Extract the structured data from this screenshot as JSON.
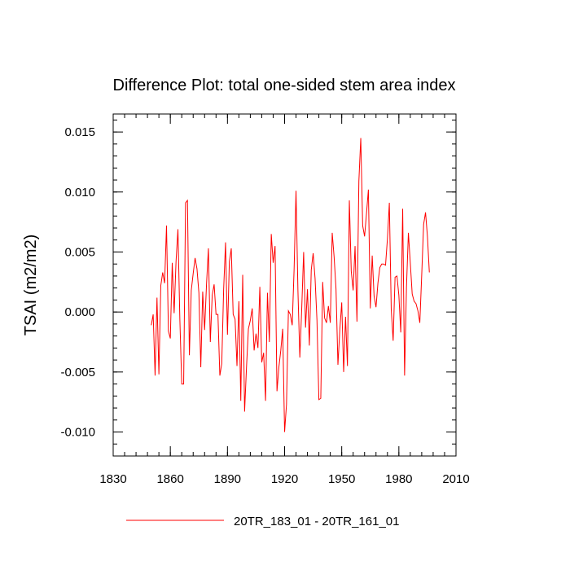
{
  "chart_data": {
    "type": "line",
    "title": "Difference Plot: total one-sided stem area index",
    "xlabel": "",
    "ylabel": "TSAI  (m2/m2)",
    "xlim": [
      1830,
      2010
    ],
    "ylim": [
      -0.012,
      0.0165
    ],
    "xticks": [
      1830,
      1860,
      1890,
      1920,
      1950,
      1980,
      2010
    ],
    "xtick_labels": [
      "1830",
      "1860",
      "1890",
      "1920",
      "1950",
      "1980",
      "2010"
    ],
    "yticks": [
      -0.01,
      -0.005,
      0.0,
      0.005,
      0.01,
      0.015
    ],
    "ytick_labels": [
      "-0.010",
      "-0.005",
      "0.000",
      "0.005",
      "0.010",
      "0.015"
    ],
    "grid": false,
    "legend_position": "bottom",
    "series": [
      {
        "name": "20TR_183_01 - 20TR_161_01",
        "color": "#ff0000",
        "x_start": 1850,
        "x_step": 1,
        "values": [
          -0.0011,
          -0.0002,
          -0.0053,
          0.0012,
          -0.0052,
          0.0022,
          0.0033,
          0.0024,
          0.0072,
          -0.0016,
          -0.0022,
          0.0041,
          -0.0001,
          0.0042,
          0.0069,
          -0.0006,
          -0.006,
          -0.006,
          0.0091,
          0.0093,
          -0.0036,
          0.0018,
          0.0032,
          0.0045,
          0.0036,
          0.0016,
          -0.0046,
          0.0017,
          -0.0015,
          0.0023,
          0.0053,
          -0.0025,
          0.0014,
          0.0023,
          -0.0002,
          -0.0002,
          -0.0053,
          -0.0043,
          0.0019,
          0.0058,
          -0.0019,
          0.0042,
          0.0053,
          -0.0002,
          -0.0006,
          -0.0045,
          0.0009,
          -0.0074,
          0.0031,
          -0.0083,
          -0.0046,
          -0.0014,
          -0.0007,
          0.0003,
          -0.0032,
          -0.0018,
          -0.003,
          0.0021,
          -0.0042,
          -0.0034,
          -0.0074,
          0.0016,
          -0.0025,
          0.0065,
          0.0041,
          0.0055,
          -0.0066,
          -0.0046,
          -0.0032,
          -0.0014,
          -0.01,
          -0.0077,
          0.0001,
          -0.0002,
          -0.0011,
          0.0036,
          0.0101,
          0.0018,
          -0.0038,
          0.0003,
          0.005,
          -0.0013,
          0.0019,
          -0.0028,
          0.0035,
          0.0049,
          0.0028,
          -0.0007,
          -0.0073,
          -0.0072,
          0.0025,
          -0.0005,
          -0.0009,
          0.0005,
          -0.0009,
          0.0066,
          0.0046,
          0.0019,
          -0.0044,
          -0.0015,
          0.0008,
          -0.005,
          -0.0004,
          -0.0045,
          0.0093,
          0.0034,
          0.0018,
          0.0055,
          -0.0008,
          0.0109,
          0.0145,
          0.0072,
          0.0063,
          0.0082,
          0.0102,
          0.0003,
          0.0047,
          0.0013,
          0.0004,
          0.0024,
          0.0037,
          0.004,
          0.004,
          0.0039,
          0.0061,
          0.0091,
          0.0002,
          -0.0024,
          0.0029,
          0.003,
          0.0014,
          -0.0017,
          0.0086,
          -0.0053,
          0.0021,
          0.0066,
          0.0041,
          0.0015,
          0.0009,
          0.0007,
          0.0001,
          -0.0009,
          0.0031,
          0.0073,
          0.0083,
          0.0063,
          0.0033
        ]
      }
    ]
  }
}
